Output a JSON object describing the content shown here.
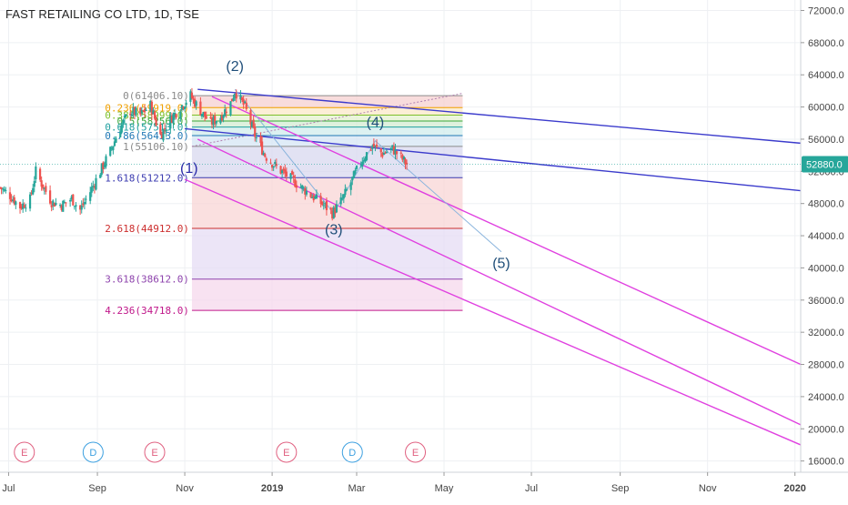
{
  "title": "FAST RETAILING CO LTD, 1D, TSE",
  "chart_data": {
    "type": "candlestick",
    "symbol": "FAST RETAILING CO LTD",
    "interval": "1D",
    "exchange": "TSE",
    "last_price": 52880.0,
    "last_price_label": "52880.0",
    "ylim": [
      14600,
      73300
    ],
    "y_ticks": [
      16000,
      20000,
      24000,
      28000,
      32000,
      36000,
      40000,
      44000,
      48000,
      52000,
      56000,
      60000,
      64000,
      68000,
      72000
    ],
    "y_tick_labels": [
      "16000.0",
      "20000.0",
      "24000.0",
      "28000.0",
      "32000.0",
      "36000.0",
      "40000.0",
      "44000.0",
      "48000.0",
      "52000.0",
      "56000.0",
      "60000.0",
      "64000.0",
      "68000.0",
      "72000.0"
    ],
    "x_range": [
      "2018-06-25",
      "2020-01-05"
    ],
    "x_ticks": [
      {
        "date": "2018-07-01",
        "label": "Jul"
      },
      {
        "date": "2018-09-01",
        "label": "Sep"
      },
      {
        "date": "2018-11-01",
        "label": "Nov"
      },
      {
        "date": "2019-01-01",
        "label": "2019"
      },
      {
        "date": "2019-03-01",
        "label": "Mar"
      },
      {
        "date": "2019-05-01",
        "label": "May"
      },
      {
        "date": "2019-07-01",
        "label": "Jul"
      },
      {
        "date": "2019-09-01",
        "label": "Sep"
      },
      {
        "date": "2019-11-01",
        "label": "Nov"
      },
      {
        "date": "2020-01-01",
        "label": "2020"
      }
    ],
    "price_path": [
      [
        "2018-06-25",
        50000
      ],
      [
        "2018-07-02",
        49000
      ],
      [
        "2018-07-09",
        47600
      ],
      [
        "2018-07-16",
        48500
      ],
      [
        "2018-07-20",
        52000
      ],
      [
        "2018-07-24",
        50500
      ],
      [
        "2018-07-31",
        48200
      ],
      [
        "2018-08-07",
        47800
      ],
      [
        "2018-08-14",
        48600
      ],
      [
        "2018-08-20",
        47200
      ],
      [
        "2018-08-27",
        49500
      ],
      [
        "2018-09-03",
        52000
      ],
      [
        "2018-09-10",
        54500
      ],
      [
        "2018-09-17",
        57500
      ],
      [
        "2018-09-24",
        59500
      ],
      [
        "2018-10-01",
        59000
      ],
      [
        "2018-10-08",
        60200
      ],
      [
        "2018-10-15",
        56500
      ],
      [
        "2018-10-22",
        58500
      ],
      [
        "2018-10-29",
        60000
      ],
      [
        "2018-11-05",
        61400
      ],
      [
        "2018-11-12",
        59500
      ],
      [
        "2018-11-19",
        58000
      ],
      [
        "2018-11-26",
        58800
      ],
      [
        "2018-12-03",
        60500
      ],
      [
        "2018-12-06",
        62000
      ],
      [
        "2018-12-13",
        60000
      ],
      [
        "2018-12-20",
        56500
      ],
      [
        "2018-12-27",
        54000
      ],
      [
        "2019-01-04",
        52500
      ],
      [
        "2019-01-11",
        51500
      ],
      [
        "2019-01-18",
        50500
      ],
      [
        "2019-01-25",
        49500
      ],
      [
        "2019-02-01",
        48500
      ],
      [
        "2019-02-08",
        47500
      ],
      [
        "2019-02-12",
        46800
      ],
      [
        "2019-02-19",
        48500
      ],
      [
        "2019-02-26",
        51000
      ],
      [
        "2019-03-05",
        53500
      ],
      [
        "2019-03-12",
        55200
      ],
      [
        "2019-03-19",
        54200
      ],
      [
        "2019-03-26",
        54800
      ],
      [
        "2019-04-02",
        53500
      ],
      [
        "2019-04-05",
        52880
      ]
    ],
    "fibonacci": {
      "start": "2018-11-06",
      "end": "2019-05-14",
      "levels": [
        {
          "ratio": "0",
          "price": 61406.1,
          "label": "0(61406.10)",
          "color": "#8a8a8a",
          "fill": "#f6d0d0"
        },
        {
          "ratio": "0.236",
          "price": 59919.0,
          "label": "0.236(59919.0)",
          "color": "#f0a000",
          "fill": "#fbe8c8"
        },
        {
          "ratio": "0.382",
          "price": 58999.0,
          "label": "0.382(58999.0)",
          "color": "#7dbf2a",
          "fill": "#e4f2cf"
        },
        {
          "ratio": "0.5",
          "price": 58256.0,
          "label": "0.5(58256.0)",
          "color": "#3aa63a",
          "fill": "#d3ecd3"
        },
        {
          "ratio": "0.618",
          "price": 57513.0,
          "label": "0.618(57513.0)",
          "color": "#20a0a0",
          "fill": "#d0ecec"
        },
        {
          "ratio": "0.786",
          "price": 56453.0,
          "label": "0.786(56453.0)",
          "color": "#1f77b4",
          "fill": "#d6e6f4"
        },
        {
          "ratio": "1",
          "price": 55106.1,
          "label": "1(55106.10)",
          "color": "#8a8a8a",
          "fill": "#d8d8ef"
        },
        {
          "ratio": "1.618",
          "price": 51212.0,
          "label": "1.618(51212.0)",
          "color": "#3b3bb0",
          "fill": "#f8d6d6"
        },
        {
          "ratio": "2.618",
          "price": 44912.0,
          "label": "2.618(44912.0)",
          "color": "#cc2e2e",
          "fill": "#e6dcf4"
        },
        {
          "ratio": "3.618",
          "price": 38612.0,
          "label": "3.618(38612.0)",
          "color": "#8e44ad",
          "fill": "#f6d8ec"
        },
        {
          "ratio": "4.236",
          "price": 34718.0,
          "label": "4.236(34718.0)",
          "color": "#c0178a",
          "fill": null
        }
      ],
      "dotted_trend_end": [
        "2019-05-14",
        61700
      ]
    },
    "wave_labels": [
      {
        "label": "(1)",
        "date": "2018-11-04",
        "price": 51800,
        "color": "#2a2aa8"
      },
      {
        "label": "(2)",
        "date": "2018-12-06",
        "price": 64500,
        "color": "#1f4e79"
      },
      {
        "label": "(3)",
        "date": "2019-02-13",
        "price": 44200,
        "color": "#1f4e79"
      },
      {
        "label": "(4)",
        "date": "2019-03-14",
        "price": 57500,
        "color": "#1f4e79"
      },
      {
        "label": "(5)",
        "date": "2019-06-10",
        "price": 40000,
        "color": "#1f4e79"
      }
    ],
    "wave_path": [
      [
        "2018-12-06",
        62200
      ],
      [
        "2019-02-13",
        46800
      ],
      [
        "2019-03-14",
        55800
      ],
      [
        "2019-06-10",
        42000
      ]
    ],
    "trendlines": [
      {
        "name": "upper-blue",
        "color": "#3b3bcc",
        "points": [
          [
            "2018-11-10",
            62200
          ],
          [
            "2020-01-05",
            55500
          ]
        ]
      },
      {
        "name": "lower-blue",
        "color": "#3b3bcc",
        "points": [
          [
            "2018-11-01",
            57300
          ],
          [
            "2020-01-05",
            49600
          ]
        ]
      },
      {
        "name": "magenta-upper",
        "color": "#e040e0",
        "points": [
          [
            "2018-11-20",
            61300
          ],
          [
            "2020-01-05",
            28000
          ]
        ]
      },
      {
        "name": "magenta-middle",
        "color": "#e040e0",
        "points": [
          [
            "2018-11-10",
            56000
          ],
          [
            "2020-01-05",
            20500
          ]
        ]
      },
      {
        "name": "magenta-lower",
        "color": "#e040e0",
        "points": [
          [
            "2018-11-01",
            51000
          ],
          [
            "2020-01-05",
            18000
          ]
        ]
      }
    ],
    "events": [
      {
        "type": "E",
        "date": "2018-07-12",
        "color": "#e06080"
      },
      {
        "type": "D",
        "date": "2018-08-29",
        "color": "#3da0e0"
      },
      {
        "type": "E",
        "date": "2018-10-11",
        "color": "#e06080"
      },
      {
        "type": "E",
        "date": "2019-01-11",
        "color": "#e06080"
      },
      {
        "type": "D",
        "date": "2019-02-26",
        "color": "#3da0e0"
      },
      {
        "type": "E",
        "date": "2019-04-11",
        "color": "#e06080"
      }
    ],
    "colors": {
      "up": "#26a69a",
      "down": "#ef5350",
      "grid": "#eef0f3",
      "axis_text": "#444444",
      "last_price_bg": "#26a69a"
    }
  }
}
